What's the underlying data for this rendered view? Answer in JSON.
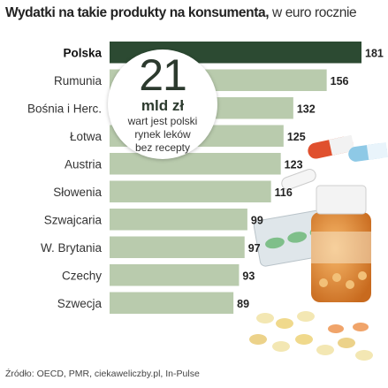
{
  "title_bold": "Wydatki na takie produkty na konsumenta,",
  "title_light": " w euro rocznie",
  "source": "Źródło: OECD, PMR, ciekaweliczby.pl, In-Pulse",
  "callout": {
    "number": "21",
    "unit": "mld zł",
    "lines": [
      "wart jest polski",
      "rynek leków",
      "bez recepty"
    ]
  },
  "colors": {
    "bar": "#b9cbad",
    "bar_highlight": "#2c4a32",
    "page_background": "#ffffff"
  },
  "decoration_icons": [
    "pill-bottle-icon",
    "capsule-icon",
    "tablet-icon",
    "blister-pack-icon"
  ],
  "chart_data": {
    "type": "bar",
    "orientation": "horizontal",
    "categories": [
      "Polska",
      "Rumunia",
      "Bośnia i Herc.",
      "Łotwa",
      "Austria",
      "Słowenia",
      "Szwajcaria",
      "W. Brytania",
      "Czechy",
      "Szwecja"
    ],
    "values": [
      181,
      156,
      132,
      125,
      123,
      116,
      99,
      97,
      93,
      89
    ],
    "highlight": "Polska",
    "title": "Wydatki na takie produkty na konsumenta, w euro rocznie",
    "xlabel": "",
    "ylabel": "",
    "xlim": [
      0,
      181
    ],
    "grid": false,
    "legend": "none"
  }
}
